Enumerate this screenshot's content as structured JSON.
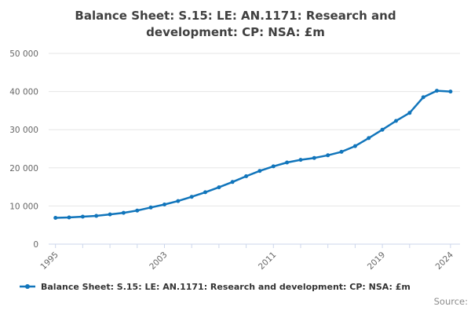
{
  "title": {
    "lines": [
      "Balance Sheet: S.15: LE: AN.1171: Research and",
      "development: CP: NSA: £m"
    ],
    "full": "Balance Sheet: S.15: LE: AN.1171: Research and development: CP: NSA: £m"
  },
  "legend": {
    "label": "Balance Sheet: S.15: LE: AN.1171: Research and development: CP: NSA: £m"
  },
  "footer": {
    "source_label": "Source:"
  },
  "colors": {
    "line": "#1175bb",
    "grid": "#e6e6e6",
    "axis": "#ccd6eb",
    "tick_text": "#666666",
    "title_text": "#404040",
    "legend_text": "#333333",
    "source_text": "#8c8c8c",
    "background": "#ffffff"
  },
  "chart_data": {
    "type": "line",
    "title": "Balance Sheet: S.15: LE: AN.1171: Research and development: CP: NSA: £m",
    "xlabel": "",
    "ylabel": "",
    "x": [
      1995,
      1996,
      1997,
      1998,
      1999,
      2000,
      2001,
      2002,
      2003,
      2004,
      2005,
      2006,
      2007,
      2008,
      2009,
      2010,
      2011,
      2012,
      2013,
      2014,
      2015,
      2016,
      2017,
      2018,
      2019,
      2020,
      2021,
      2022,
      2023,
      2024
    ],
    "series": [
      {
        "name": "Balance Sheet: S.15: LE: AN.1171: Research and development: CP: NSA: £m",
        "values": [
          6900,
          7000,
          7200,
          7400,
          7800,
          8200,
          8800,
          9600,
          10400,
          11300,
          12400,
          13600,
          14900,
          16300,
          17800,
          19200,
          20400,
          21400,
          22100,
          22600,
          23300,
          24200,
          25700,
          27800,
          30000,
          32300,
          34400,
          38500,
          40200,
          40000
        ]
      }
    ],
    "xlim": [
      1994.5,
      2024.7
    ],
    "ylim": [
      0,
      50000
    ],
    "y_ticks": [
      0,
      10000,
      20000,
      30000,
      40000,
      50000
    ],
    "y_tick_labels": [
      "0",
      "10 000",
      "20 000",
      "30 000",
      "40 000",
      "50 000"
    ],
    "x_ticks": [
      1995,
      1997,
      1999,
      2001,
      2003,
      2005,
      2007,
      2009,
      2011,
      2013,
      2015,
      2017,
      2019,
      2021,
      2024
    ],
    "x_labeled_ticks": [
      {
        "year": 1995,
        "label": "1995"
      },
      {
        "year": 2003,
        "label": "2003"
      },
      {
        "year": 2011,
        "label": "2011"
      },
      {
        "year": 2019,
        "label": "2019"
      },
      {
        "year": 2024,
        "label": "2024"
      }
    ],
    "grid": "horizontal",
    "legend_position": "bottom",
    "marker": "circle"
  }
}
